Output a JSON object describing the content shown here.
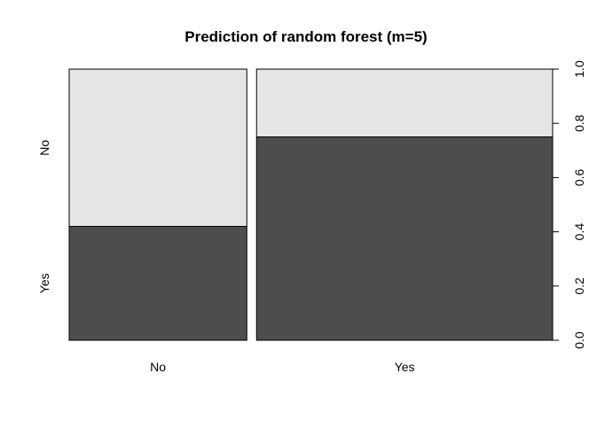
{
  "chart_data": {
    "type": "spineplot",
    "title": "Prediction of random forest (m=5)",
    "xlabel": "",
    "ylabel": "",
    "categories": [
      "No",
      "Yes"
    ],
    "category_widths": [
      0.375,
      0.625
    ],
    "series": [
      {
        "name": "Yes",
        "color": "#4d4d4d",
        "values": [
          0.42,
          0.75
        ]
      },
      {
        "name": "No",
        "color": "#e6e6e6",
        "values": [
          0.58,
          0.25
        ]
      }
    ],
    "y_axis_left_labels": [
      "Yes",
      "No"
    ],
    "y_axis_right_ticks": [
      "0.0",
      "0.2",
      "0.4",
      "0.6",
      "0.8",
      "1.0"
    ],
    "ylim": [
      0,
      1
    ]
  }
}
